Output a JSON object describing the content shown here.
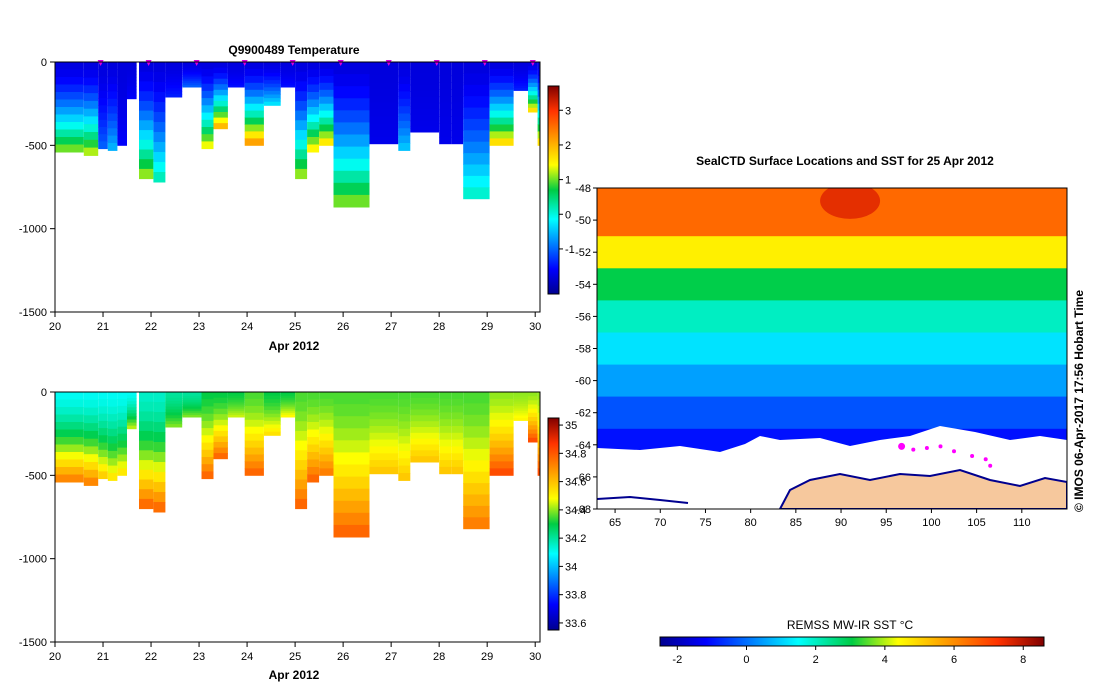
{
  "chart_data": [
    {
      "type": "heatmap",
      "title": "Q9900489  Temperature",
      "xlabel": "Apr 2012",
      "ylabel": "",
      "x_ticks": [
        "20",
        "21",
        "22",
        "23",
        "24",
        "25",
        "26",
        "27",
        "28",
        "29",
        "30"
      ],
      "y_ticks": [
        "0",
        "-500",
        "-1000",
        "-1500"
      ],
      "xlim": [
        20,
        30.1
      ],
      "ylim": [
        -1500,
        0
      ],
      "colorbar_ticks": [
        "3",
        "2",
        "1",
        "0",
        "-1"
      ],
      "colorbar_range": [
        -2.3,
        3.7
      ],
      "profiles": [
        {
          "t": 20.0,
          "w": 0.6,
          "max_depth": 540,
          "surface": -1.8,
          "bottom": 1.2
        },
        {
          "t": 20.6,
          "w": 0.3,
          "max_depth": 560,
          "surface": -1.8,
          "bottom": 1.4
        },
        {
          "t": 20.9,
          "w": 0.2,
          "max_depth": 520,
          "surface": -1.8,
          "bottom": -1.0
        },
        {
          "t": 21.1,
          "w": 0.2,
          "max_depth": 530,
          "surface": -1.8,
          "bottom": -0.5
        },
        {
          "t": 21.3,
          "w": 0.2,
          "max_depth": 500,
          "surface": -1.8,
          "bottom": -1.6
        },
        {
          "t": 21.5,
          "w": 0.2,
          "max_depth": 220,
          "surface": -1.8,
          "bottom": -1.6
        },
        {
          "t": 21.75,
          "w": 0.3,
          "max_depth": 700,
          "surface": -1.8,
          "bottom": 1.3
        },
        {
          "t": 22.05,
          "w": 0.25,
          "max_depth": 720,
          "surface": -1.8,
          "bottom": 0.3
        },
        {
          "t": 22.3,
          "w": 0.35,
          "max_depth": 210,
          "surface": -1.8,
          "bottom": -1.4
        },
        {
          "t": 22.65,
          "w": 0.4,
          "max_depth": 150,
          "surface": -1.8,
          "bottom": -1.0
        },
        {
          "t": 23.05,
          "w": 0.25,
          "max_depth": 520,
          "surface": -1.8,
          "bottom": 1.6
        },
        {
          "t": 23.3,
          "w": 0.3,
          "max_depth": 400,
          "surface": -1.8,
          "bottom": 2.2
        },
        {
          "t": 23.6,
          "w": 0.35,
          "max_depth": 150,
          "surface": -1.8,
          "bottom": -1.5
        },
        {
          "t": 23.95,
          "w": 0.4,
          "max_depth": 500,
          "surface": -1.8,
          "bottom": 2.4
        },
        {
          "t": 24.35,
          "w": 0.35,
          "max_depth": 260,
          "surface": -1.8,
          "bottom": -0.2
        },
        {
          "t": 24.7,
          "w": 0.3,
          "max_depth": 150,
          "surface": -1.8,
          "bottom": -1.5
        },
        {
          "t": 25.0,
          "w": 0.25,
          "max_depth": 700,
          "surface": -1.8,
          "bottom": 1.3
        },
        {
          "t": 25.25,
          "w": 0.25,
          "max_depth": 540,
          "surface": -1.8,
          "bottom": 1.7
        },
        {
          "t": 25.5,
          "w": 0.3,
          "max_depth": 500,
          "surface": -1.8,
          "bottom": 1.8
        },
        {
          "t": 25.8,
          "w": 0.75,
          "max_depth": 870,
          "surface": -1.8,
          "bottom": 1.2
        },
        {
          "t": 26.55,
          "w": 0.6,
          "max_depth": 490,
          "surface": -1.8,
          "bottom": -1.7
        },
        {
          "t": 27.15,
          "w": 0.25,
          "max_depth": 530,
          "surface": -1.8,
          "bottom": -0.4
        },
        {
          "t": 27.4,
          "w": 0.6,
          "max_depth": 420,
          "surface": -1.8,
          "bottom": -1.7
        },
        {
          "t": 28.0,
          "w": 0.25,
          "max_depth": 490,
          "surface": -1.8,
          "bottom": -1.7
        },
        {
          "t": 28.25,
          "w": 0.25,
          "max_depth": 490,
          "surface": -1.8,
          "bottom": -1.7
        },
        {
          "t": 28.5,
          "w": 0.55,
          "max_depth": 820,
          "surface": -1.8,
          "bottom": 0.2
        },
        {
          "t": 29.05,
          "w": 0.5,
          "max_depth": 500,
          "surface": -1.8,
          "bottom": 1.9
        },
        {
          "t": 29.55,
          "w": 0.3,
          "max_depth": 170,
          "surface": -1.8,
          "bottom": -1.4
        },
        {
          "t": 29.85,
          "w": 0.2,
          "max_depth": 300,
          "surface": -1.8,
          "bottom": 1.9
        },
        {
          "t": 30.05,
          "w": 0.05,
          "max_depth": 500,
          "surface": -1.8,
          "bottom": 1.9
        }
      ],
      "markers": [
        20.95,
        21.95,
        22.95,
        23.95,
        24.95,
        25.95,
        26.95,
        27.95,
        28.95,
        29.95
      ]
    },
    {
      "type": "heatmap",
      "title": "",
      "xlabel": "Apr 2012",
      "ylabel": "",
      "x_ticks": [
        "20",
        "21",
        "22",
        "23",
        "24",
        "25",
        "26",
        "27",
        "28",
        "29",
        "30"
      ],
      "y_ticks": [
        "0",
        "-500",
        "-1000",
        "-1500"
      ],
      "xlim": [
        20,
        30.1
      ],
      "ylim": [
        -1500,
        0
      ],
      "colorbar_ticks": [
        "35",
        "34.8",
        "34.6",
        "34.4",
        "34.2",
        "34",
        "33.8",
        "33.6"
      ],
      "colorbar_range": [
        33.55,
        35.05
      ],
      "profiles": [
        {
          "t": 20.0,
          "w": 0.6,
          "max_depth": 540,
          "surface": 34.1,
          "bottom": 34.75
        },
        {
          "t": 20.6,
          "w": 0.3,
          "max_depth": 560,
          "surface": 34.1,
          "bottom": 34.75
        },
        {
          "t": 20.9,
          "w": 0.2,
          "max_depth": 520,
          "surface": 34.1,
          "bottom": 34.6
        },
        {
          "t": 21.1,
          "w": 0.2,
          "max_depth": 530,
          "surface": 34.1,
          "bottom": 34.55
        },
        {
          "t": 21.3,
          "w": 0.2,
          "max_depth": 500,
          "surface": 34.1,
          "bottom": 34.55
        },
        {
          "t": 21.5,
          "w": 0.2,
          "max_depth": 220,
          "surface": 34.1,
          "bottom": 34.45
        },
        {
          "t": 21.75,
          "w": 0.3,
          "max_depth": 700,
          "surface": 34.15,
          "bottom": 34.8
        },
        {
          "t": 22.05,
          "w": 0.25,
          "max_depth": 720,
          "surface": 34.15,
          "bottom": 34.8
        },
        {
          "t": 22.3,
          "w": 0.35,
          "max_depth": 210,
          "surface": 34.2,
          "bottom": 34.4
        },
        {
          "t": 22.65,
          "w": 0.4,
          "max_depth": 150,
          "surface": 34.2,
          "bottom": 34.4
        },
        {
          "t": 23.05,
          "w": 0.25,
          "max_depth": 520,
          "surface": 34.3,
          "bottom": 34.8
        },
        {
          "t": 23.3,
          "w": 0.3,
          "max_depth": 400,
          "surface": 34.3,
          "bottom": 34.8
        },
        {
          "t": 23.6,
          "w": 0.35,
          "max_depth": 150,
          "surface": 34.3,
          "bottom": 34.45
        },
        {
          "t": 23.95,
          "w": 0.4,
          "max_depth": 500,
          "surface": 34.35,
          "bottom": 34.8
        },
        {
          "t": 24.35,
          "w": 0.35,
          "max_depth": 260,
          "surface": 34.3,
          "bottom": 34.55
        },
        {
          "t": 24.7,
          "w": 0.3,
          "max_depth": 150,
          "surface": 34.3,
          "bottom": 34.5
        },
        {
          "t": 25.0,
          "w": 0.25,
          "max_depth": 700,
          "surface": 34.35,
          "bottom": 34.8
        },
        {
          "t": 25.25,
          "w": 0.25,
          "max_depth": 540,
          "surface": 34.35,
          "bottom": 34.8
        },
        {
          "t": 25.5,
          "w": 0.3,
          "max_depth": 500,
          "surface": 34.35,
          "bottom": 34.75
        },
        {
          "t": 25.8,
          "w": 0.75,
          "max_depth": 870,
          "surface": 34.35,
          "bottom": 34.8
        },
        {
          "t": 26.55,
          "w": 0.6,
          "max_depth": 490,
          "surface": 34.35,
          "bottom": 34.6
        },
        {
          "t": 27.15,
          "w": 0.25,
          "max_depth": 530,
          "surface": 34.35,
          "bottom": 34.6
        },
        {
          "t": 27.4,
          "w": 0.6,
          "max_depth": 420,
          "surface": 34.35,
          "bottom": 34.6
        },
        {
          "t": 28.0,
          "w": 0.25,
          "max_depth": 490,
          "surface": 34.35,
          "bottom": 34.6
        },
        {
          "t": 28.25,
          "w": 0.25,
          "max_depth": 490,
          "surface": 34.35,
          "bottom": 34.6
        },
        {
          "t": 28.5,
          "w": 0.55,
          "max_depth": 820,
          "surface": 34.35,
          "bottom": 34.75
        },
        {
          "t": 29.05,
          "w": 0.5,
          "max_depth": 500,
          "surface": 34.4,
          "bottom": 34.85
        },
        {
          "t": 29.55,
          "w": 0.3,
          "max_depth": 170,
          "surface": 34.4,
          "bottom": 34.5
        },
        {
          "t": 29.85,
          "w": 0.2,
          "max_depth": 300,
          "surface": 34.4,
          "bottom": 34.85
        },
        {
          "t": 30.05,
          "w": 0.05,
          "max_depth": 500,
          "surface": 34.4,
          "bottom": 34.85
        }
      ]
    },
    {
      "type": "heatmap",
      "title": "SealCTD Surface Locations and SST for 25 Apr 2012",
      "xlabel": "",
      "ylabel": "",
      "x_ticks": [
        "65",
        "70",
        "75",
        "80",
        "85",
        "90",
        "95",
        "100",
        "105",
        "110"
      ],
      "y_ticks": [
        "-48",
        "-50",
        "-52",
        "-54",
        "-56",
        "-58",
        "-60",
        "-62",
        "-64",
        "-66",
        "-68"
      ],
      "xlim": [
        63,
        115
      ],
      "ylim": [
        -68,
        -48
      ],
      "colorbar_label": "REMSS MW-IR SST °C",
      "colorbar_ticks": [
        "-2",
        "0",
        "2",
        "4",
        "6",
        "8"
      ],
      "colorbar_range": [
        -2.5,
        8.6
      ],
      "sst_bands": [
        {
          "lat_from": -48,
          "lat_to": -51,
          "sst": 6.5
        },
        {
          "lat_from": -51,
          "lat_to": -53,
          "sst": 4.6
        },
        {
          "lat_from": -53,
          "lat_to": -55,
          "sst": 3.0
        },
        {
          "lat_from": -55,
          "lat_to": -57,
          "sst": 2.0
        },
        {
          "lat_from": -57,
          "lat_to": -59,
          "sst": 1.2
        },
        {
          "lat_from": -59,
          "lat_to": -61,
          "sst": 0.5
        },
        {
          "lat_from": -61,
          "lat_to": -63,
          "sst": -0.3
        },
        {
          "lat_from": -63,
          "lat_to": -64.5,
          "sst": -1.0
        }
      ],
      "seal_locations": [
        {
          "lon": 96.7,
          "lat": -64.1
        },
        {
          "lon": 98.0,
          "lat": -64.3
        },
        {
          "lon": 99.5,
          "lat": -64.2
        },
        {
          "lon": 101.0,
          "lat": -64.1
        },
        {
          "lon": 102.5,
          "lat": -64.4
        },
        {
          "lon": 104.5,
          "lat": -64.7
        },
        {
          "lon": 106.0,
          "lat": -64.9
        },
        {
          "lon": 106.5,
          "lat": -65.3
        }
      ],
      "credit": "©  IMOS 06-Apr-2017 17:56 Hobart Time"
    }
  ]
}
